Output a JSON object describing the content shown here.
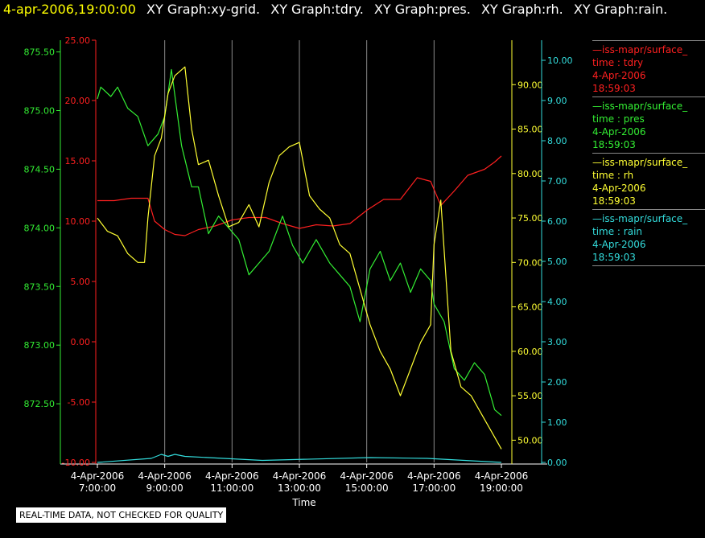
{
  "header": {
    "time": "4-apr-2006,19:00:00",
    "graphs": [
      "XY Graph:xy-grid.",
      "XY Graph:tdry.",
      "XY Graph:pres.",
      "XY Graph:rh.",
      "XY Graph:rain."
    ]
  },
  "legend": [
    {
      "name": "iss-mapr/surface_",
      "var": "time : tdry",
      "date": "4-Apr-2006",
      "time": "18:59:03",
      "color": "#ff2020"
    },
    {
      "name": "iss-mapr/surface_",
      "var": "time : pres",
      "date": "4-Apr-2006",
      "time": "18:59:03",
      "color": "#33ee33"
    },
    {
      "name": "iss-mapr/surface_",
      "var": "time : rh",
      "date": "4-Apr-2006",
      "time": "18:59:03",
      "color": "#ffff33"
    },
    {
      "name": "iss-mapr/surface_",
      "var": "time : rain",
      "date": "4-Apr-2006",
      "time": "18:59:03",
      "color": "#33dddd"
    }
  ],
  "note": "REAL-TIME DATA, NOT CHECKED FOR QUALITY",
  "chart_data": {
    "type": "line",
    "xlabel": "Time",
    "xlim": [
      7.0,
      19.0
    ],
    "x_ticks": [
      {
        "v": 7,
        "date": "4-Apr-2006",
        "time": "7:00:00"
      },
      {
        "v": 9,
        "date": "4-Apr-2006",
        "time": "9:00:00"
      },
      {
        "v": 11,
        "date": "4-Apr-2006",
        "time": "11:00:00"
      },
      {
        "v": 13,
        "date": "4-Apr-2006",
        "time": "13:00:00"
      },
      {
        "v": 15,
        "date": "4-Apr-2006",
        "time": "15:00:00"
      },
      {
        "v": 17,
        "date": "4-Apr-2006",
        "time": "17:00:00"
      },
      {
        "v": 19,
        "date": "4-Apr-2006",
        "time": "19:00:00"
      }
    ],
    "axes": [
      {
        "id": "pres",
        "color": "#33ee33",
        "ylim": [
          872.0,
          875.6
        ],
        "ticks": [
          "872.50",
          "873.00",
          "873.50",
          "874.00",
          "874.50",
          "875.00",
          "875.50"
        ]
      },
      {
        "id": "tdry",
        "color": "#ff2020",
        "ylim": [
          -10.0,
          25.0
        ],
        "ticks": [
          "-10.00",
          "-5.00",
          "0.00",
          "5.00",
          "10.00",
          "15.00",
          "20.00",
          "25.00"
        ]
      },
      {
        "id": "rh",
        "color": "#ffff33",
        "ylim": [
          47.5,
          95.0
        ],
        "ticks": [
          "50.00",
          "55.00",
          "60.00",
          "65.00",
          "70.00",
          "75.00",
          "80.00",
          "85.00",
          "90.00"
        ]
      },
      {
        "id": "rain",
        "color": "#33dddd",
        "ylim": [
          0.0,
          10.5
        ],
        "ticks": [
          "0.00",
          "1.00",
          "2.00",
          "3.00",
          "4.00",
          "5.00",
          "6.00",
          "7.00",
          "8.00",
          "9.00",
          "10.00"
        ]
      }
    ],
    "series": [
      {
        "name": "tdry",
        "axis": "tdry",
        "color": "#ff2020",
        "x": [
          7.0,
          7.5,
          8.0,
          8.5,
          8.7,
          9.0,
          9.3,
          9.6,
          10.0,
          10.5,
          11.0,
          11.5,
          12.0,
          12.5,
          13.0,
          13.5,
          14.0,
          14.5,
          15.0,
          15.5,
          16.0,
          16.5,
          16.9,
          17.2,
          17.6,
          18.0,
          18.5,
          18.8,
          19.0
        ],
        "y": [
          11.7,
          11.7,
          11.9,
          11.9,
          10.0,
          9.3,
          8.9,
          8.8,
          9.3,
          9.6,
          10.1,
          10.3,
          10.3,
          9.8,
          9.4,
          9.7,
          9.6,
          9.8,
          10.9,
          11.8,
          11.8,
          13.6,
          13.3,
          11.3,
          12.5,
          13.8,
          14.3,
          14.9,
          15.4
        ]
      },
      {
        "name": "pres",
        "axis": "pres",
        "color": "#33ee33",
        "x": [
          7.0,
          7.1,
          7.4,
          7.6,
          7.9,
          8.2,
          8.5,
          8.8,
          9.0,
          9.2,
          9.5,
          9.8,
          10.0,
          10.3,
          10.6,
          10.9,
          11.2,
          11.5,
          11.8,
          12.1,
          12.5,
          12.8,
          13.1,
          13.5,
          13.9,
          14.2,
          14.5,
          14.8,
          15.1,
          15.4,
          15.7,
          16.0,
          16.3,
          16.6,
          16.9,
          17.0,
          17.3,
          17.6,
          17.9,
          18.2,
          18.5,
          18.8,
          19.0
        ],
        "y": [
          875.1,
          875.2,
          875.12,
          875.2,
          875.02,
          874.95,
          874.7,
          874.8,
          874.95,
          875.35,
          874.7,
          874.35,
          874.35,
          873.95,
          874.1,
          874.0,
          873.9,
          873.6,
          873.7,
          873.8,
          874.1,
          873.85,
          873.7,
          873.9,
          873.7,
          873.6,
          873.5,
          873.2,
          873.65,
          873.8,
          873.55,
          873.7,
          873.45,
          873.65,
          873.55,
          873.35,
          873.2,
          872.8,
          872.7,
          872.85,
          872.75,
          872.45,
          872.4
        ]
      },
      {
        "name": "rh",
        "axis": "rh",
        "color": "#ffff33",
        "x": [
          7.0,
          7.3,
          7.6,
          7.9,
          8.2,
          8.4,
          8.5,
          8.7,
          8.9,
          9.1,
          9.3,
          9.6,
          9.8,
          10.0,
          10.3,
          10.6,
          10.9,
          11.2,
          11.5,
          11.8,
          12.1,
          12.4,
          12.7,
          13.0,
          13.3,
          13.6,
          13.9,
          14.2,
          14.5,
          14.8,
          15.1,
          15.4,
          15.7,
          16.0,
          16.3,
          16.6,
          16.9,
          17.0,
          17.2,
          17.5,
          17.8,
          18.1,
          18.4,
          18.7,
          19.0
        ],
        "y": [
          75.0,
          73.5,
          73.0,
          71.0,
          70.0,
          70.0,
          75.0,
          82.0,
          84.0,
          89.0,
          91.0,
          92.0,
          85.0,
          81.0,
          81.5,
          77.5,
          74.0,
          74.5,
          76.5,
          74.0,
          79.0,
          82.0,
          83.0,
          83.5,
          77.5,
          76.0,
          75.0,
          72.0,
          71.0,
          67.0,
          63.0,
          60.0,
          58.0,
          55.0,
          58.0,
          61.0,
          63.0,
          72.0,
          77.0,
          60.0,
          56.0,
          55.0,
          53.0,
          51.0,
          49.0
        ]
      },
      {
        "name": "rain",
        "axis": "rain",
        "color": "#33dddd",
        "x": [
          7.0,
          8.6,
          8.9,
          9.1,
          9.3,
          9.6,
          11.9,
          15.1,
          16.8,
          19.0
        ],
        "y": [
          0.0,
          0.1,
          0.2,
          0.15,
          0.2,
          0.15,
          0.05,
          0.12,
          0.1,
          0.0
        ]
      }
    ]
  }
}
